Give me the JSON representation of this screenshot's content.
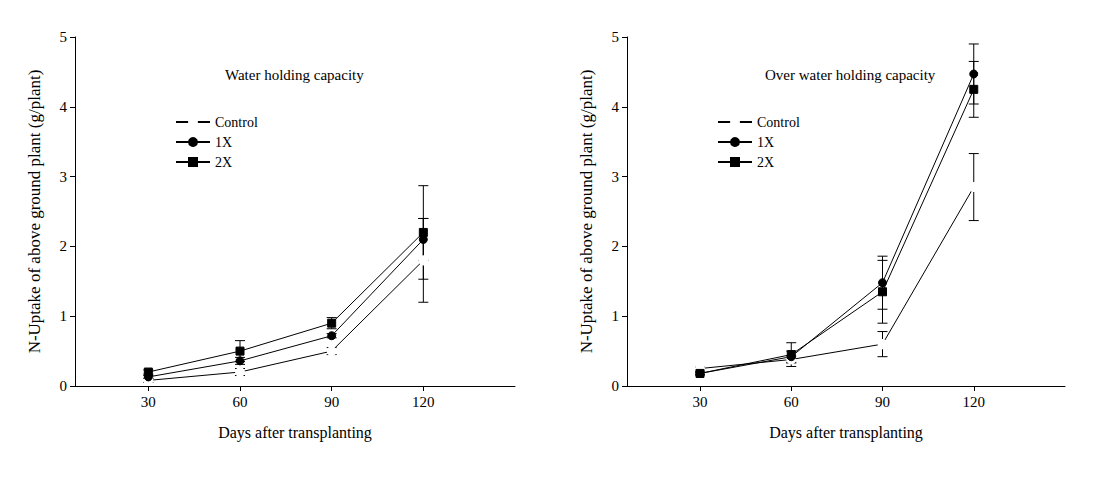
{
  "chart_data": [
    {
      "type": "line",
      "title": "Water holding capacity",
      "x_label": "Days after transplanting",
      "y_label": "N-Uptake of above ground plant (g/plant)",
      "x": [
        30,
        60,
        90,
        120
      ],
      "xlim": [
        6,
        150
      ],
      "xticks": [
        30,
        60,
        90,
        120
      ],
      "ylim": [
        0,
        5
      ],
      "yticks": [
        0,
        1,
        2,
        3,
        4,
        5
      ],
      "grid": false,
      "legend": "upper left",
      "series": [
        {
          "name": "Control",
          "color": "#000000",
          "marker": "open circle",
          "values": [
            0.08,
            0.2,
            0.5,
            1.8
          ],
          "errors": [
            0.03,
            0.05,
            0.05,
            0.6
          ]
        },
        {
          "name": "1X",
          "color": "#000000",
          "marker": "circle",
          "values": [
            0.13,
            0.36,
            0.72,
            2.1
          ],
          "errors": [
            0.02,
            0.05,
            0.03,
            0.3
          ]
        },
        {
          "name": "2X",
          "color": "#000000",
          "marker": "square",
          "values": [
            0.2,
            0.5,
            0.9,
            2.2
          ],
          "errors": [
            0.03,
            0.15,
            0.08,
            0.67
          ]
        }
      ]
    },
    {
      "type": "line",
      "title": "Over water holding capacity",
      "x_label": "Days after transplanting",
      "y_label": "N-Uptake of above ground plant (g/plant)",
      "x": [
        30,
        60,
        90,
        120
      ],
      "xlim": [
        6,
        150
      ],
      "xticks": [
        30,
        60,
        90,
        120
      ],
      "ylim": [
        0,
        5
      ],
      "yticks": [
        0,
        1,
        2,
        3,
        4,
        5
      ],
      "grid": false,
      "legend": "upper left",
      "series": [
        {
          "name": "Control",
          "color": "#000000",
          "marker": "open circle",
          "values": [
            0.25,
            0.38,
            0.6,
            2.85
          ],
          "errors": [
            0.02,
            0.05,
            0.18,
            0.48
          ]
        },
        {
          "name": "1X",
          "color": "#000000",
          "marker": "circle",
          "values": [
            0.18,
            0.42,
            1.48,
            4.47
          ],
          "errors": [
            0.02,
            0.08,
            0.38,
            0.43
          ]
        },
        {
          "name": "2X",
          "color": "#000000",
          "marker": "square",
          "values": [
            0.18,
            0.45,
            1.35,
            4.25
          ],
          "errors": [
            0.02,
            0.17,
            0.45,
            0.4
          ]
        }
      ]
    }
  ]
}
